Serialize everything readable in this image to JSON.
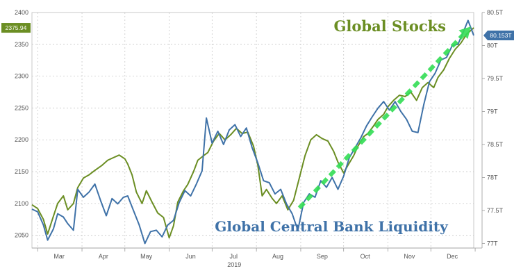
{
  "chart_data": {
    "type": "line",
    "title": "",
    "xlabel": "2019",
    "x_ticks": [
      "Mar",
      "Apr",
      "May",
      "Jun",
      "Jul",
      "Aug",
      "Sep",
      "Oct",
      "Nov",
      "Dec"
    ],
    "x_range": [
      "2019-02-25",
      "2019-12-31"
    ],
    "y_left": {
      "range": [
        2030,
        2400
      ],
      "ticks": [
        2050,
        2100,
        2150,
        2200,
        2250,
        2300,
        2350,
        2400
      ],
      "labels": [
        "2050",
        "2100",
        "2150",
        "2200",
        "2250",
        "2300",
        "2350",
        "2400"
      ]
    },
    "y_right": {
      "range": [
        76.93,
        80.5
      ],
      "ticks": [
        77,
        77.5,
        78,
        78.5,
        79,
        79.5,
        80,
        80.5
      ],
      "labels": [
        "77T",
        "77.5T",
        "78T",
        "78.5T",
        "79T",
        "79.5T",
        "80T",
        "80.5T"
      ]
    },
    "grid": true,
    "series": [
      {
        "name": "Global Stocks",
        "axis": "left",
        "color": "#6b8e23",
        "last_value_label": "2375.94",
        "points": [
          [
            "2019-02-25",
            2098
          ],
          [
            "2019-03-01",
            2092
          ],
          [
            "2019-03-05",
            2075
          ],
          [
            "2019-03-08",
            2052
          ],
          [
            "2019-03-12",
            2080
          ],
          [
            "2019-03-15",
            2100
          ],
          [
            "2019-03-19",
            2112
          ],
          [
            "2019-03-22",
            2090
          ],
          [
            "2019-03-26",
            2100
          ],
          [
            "2019-03-29",
            2125
          ],
          [
            "2019-04-02",
            2140
          ],
          [
            "2019-04-06",
            2145
          ],
          [
            "2019-04-10",
            2152
          ],
          [
            "2019-04-15",
            2160
          ],
          [
            "2019-04-19",
            2168
          ],
          [
            "2019-04-23",
            2172
          ],
          [
            "2019-04-27",
            2176
          ],
          [
            "2019-05-01",
            2170
          ],
          [
            "2019-05-03",
            2162
          ],
          [
            "2019-05-06",
            2145
          ],
          [
            "2019-05-09",
            2118
          ],
          [
            "2019-05-13",
            2100
          ],
          [
            "2019-05-16",
            2120
          ],
          [
            "2019-05-20",
            2102
          ],
          [
            "2019-05-24",
            2085
          ],
          [
            "2019-05-28",
            2078
          ],
          [
            "2019-06-01",
            2046
          ],
          [
            "2019-06-04",
            2065
          ],
          [
            "2019-06-07",
            2102
          ],
          [
            "2019-06-11",
            2120
          ],
          [
            "2019-06-14",
            2130
          ],
          [
            "2019-06-18",
            2150
          ],
          [
            "2019-06-21",
            2168
          ],
          [
            "2019-06-25",
            2175
          ],
          [
            "2019-06-28",
            2180
          ],
          [
            "2019-07-02",
            2198
          ],
          [
            "2019-07-06",
            2210
          ],
          [
            "2019-07-10",
            2200
          ],
          [
            "2019-07-14",
            2208
          ],
          [
            "2019-07-18",
            2218
          ],
          [
            "2019-07-22",
            2210
          ],
          [
            "2019-07-26",
            2212
          ],
          [
            "2019-07-30",
            2190
          ],
          [
            "2019-08-02",
            2160
          ],
          [
            "2019-08-05",
            2112
          ],
          [
            "2019-08-08",
            2122
          ],
          [
            "2019-08-12",
            2108
          ],
          [
            "2019-08-15",
            2100
          ],
          [
            "2019-08-19",
            2112
          ],
          [
            "2019-08-23",
            2090
          ],
          [
            "2019-08-27",
            2105
          ],
          [
            "2019-08-31",
            2140
          ],
          [
            "2019-09-04",
            2175
          ],
          [
            "2019-09-08",
            2200
          ],
          [
            "2019-09-12",
            2208
          ],
          [
            "2019-09-16",
            2202
          ],
          [
            "2019-09-20",
            2198
          ],
          [
            "2019-09-24",
            2182
          ],
          [
            "2019-09-27",
            2165
          ],
          [
            "2019-10-01",
            2148
          ],
          [
            "2019-10-04",
            2160
          ],
          [
            "2019-10-08",
            2175
          ],
          [
            "2019-10-11",
            2190
          ],
          [
            "2019-10-15",
            2205
          ],
          [
            "2019-10-18",
            2210
          ],
          [
            "2019-10-22",
            2222
          ],
          [
            "2019-10-25",
            2232
          ],
          [
            "2019-10-29",
            2240
          ],
          [
            "2019-11-01",
            2252
          ],
          [
            "2019-11-05",
            2262
          ],
          [
            "2019-11-09",
            2270
          ],
          [
            "2019-11-13",
            2268
          ],
          [
            "2019-11-17",
            2275
          ],
          [
            "2019-11-21",
            2262
          ],
          [
            "2019-11-25",
            2282
          ],
          [
            "2019-11-29",
            2290
          ],
          [
            "2019-12-03",
            2282
          ],
          [
            "2019-12-06",
            2298
          ],
          [
            "2019-12-10",
            2310
          ],
          [
            "2019-12-14",
            2328
          ],
          [
            "2019-12-18",
            2342
          ],
          [
            "2019-12-22",
            2352
          ],
          [
            "2019-12-26",
            2366
          ],
          [
            "2019-12-29",
            2372
          ],
          [
            "2019-12-31",
            2375.94
          ]
        ]
      },
      {
        "name": "Global Central Bank Liquidity",
        "axis": "right",
        "color": "#3f72a8",
        "last_value_label": "80.153T",
        "points": [
          [
            "2019-02-25",
            77.52
          ],
          [
            "2019-03-01",
            77.48
          ],
          [
            "2019-03-05",
            77.28
          ],
          [
            "2019-03-08",
            77.05
          ],
          [
            "2019-03-12",
            77.22
          ],
          [
            "2019-03-15",
            77.45
          ],
          [
            "2019-03-19",
            77.4
          ],
          [
            "2019-03-22",
            77.3
          ],
          [
            "2019-03-26",
            77.2
          ],
          [
            "2019-03-29",
            77.82
          ],
          [
            "2019-04-02",
            77.7
          ],
          [
            "2019-04-06",
            77.78
          ],
          [
            "2019-04-10",
            77.9
          ],
          [
            "2019-04-14",
            77.65
          ],
          [
            "2019-04-18",
            77.42
          ],
          [
            "2019-04-22",
            77.68
          ],
          [
            "2019-04-26",
            77.6
          ],
          [
            "2019-04-30",
            77.7
          ],
          [
            "2019-05-03",
            77.72
          ],
          [
            "2019-05-07",
            77.5
          ],
          [
            "2019-05-11",
            77.28
          ],
          [
            "2019-05-15",
            77.0
          ],
          [
            "2019-05-19",
            77.18
          ],
          [
            "2019-05-23",
            77.2
          ],
          [
            "2019-05-27",
            77.1
          ],
          [
            "2019-05-31",
            77.28
          ],
          [
            "2019-06-04",
            77.35
          ],
          [
            "2019-06-08",
            77.62
          ],
          [
            "2019-06-12",
            77.8
          ],
          [
            "2019-06-16",
            77.72
          ],
          [
            "2019-06-20",
            77.9
          ],
          [
            "2019-06-24",
            78.1
          ],
          [
            "2019-06-27",
            78.9
          ],
          [
            "2019-07-01",
            78.52
          ],
          [
            "2019-07-05",
            78.7
          ],
          [
            "2019-07-09",
            78.5
          ],
          [
            "2019-07-13",
            78.72
          ],
          [
            "2019-07-17",
            78.8
          ],
          [
            "2019-07-21",
            78.62
          ],
          [
            "2019-07-25",
            78.75
          ],
          [
            "2019-07-29",
            78.45
          ],
          [
            "2019-08-02",
            78.22
          ],
          [
            "2019-08-06",
            77.95
          ],
          [
            "2019-08-10",
            77.92
          ],
          [
            "2019-08-14",
            77.75
          ],
          [
            "2019-08-18",
            77.82
          ],
          [
            "2019-08-22",
            77.6
          ],
          [
            "2019-08-26",
            77.45
          ],
          [
            "2019-08-30",
            77.2
          ],
          [
            "2019-09-03",
            77.62
          ],
          [
            "2019-09-07",
            77.75
          ],
          [
            "2019-09-11",
            77.7
          ],
          [
            "2019-09-15",
            77.95
          ],
          [
            "2019-09-19",
            77.85
          ],
          [
            "2019-09-23",
            78.0
          ],
          [
            "2019-09-27",
            77.82
          ],
          [
            "2019-10-01",
            78.02
          ],
          [
            "2019-10-05",
            78.3
          ],
          [
            "2019-10-09",
            78.45
          ],
          [
            "2019-10-13",
            78.6
          ],
          [
            "2019-10-17",
            78.78
          ],
          [
            "2019-10-21",
            78.92
          ],
          [
            "2019-10-25",
            79.05
          ],
          [
            "2019-10-29",
            79.15
          ],
          [
            "2019-11-02",
            79.02
          ],
          [
            "2019-11-06",
            79.15
          ],
          [
            "2019-11-10",
            79.0
          ],
          [
            "2019-11-14",
            78.88
          ],
          [
            "2019-11-18",
            78.7
          ],
          [
            "2019-11-22",
            78.68
          ],
          [
            "2019-11-26",
            79.1
          ],
          [
            "2019-11-30",
            79.45
          ],
          [
            "2019-12-04",
            79.58
          ],
          [
            "2019-12-08",
            79.78
          ],
          [
            "2019-12-12",
            79.82
          ],
          [
            "2019-12-16",
            80.0
          ],
          [
            "2019-12-20",
            80.02
          ],
          [
            "2019-12-24",
            80.22
          ],
          [
            "2019-12-27",
            80.38
          ],
          [
            "2019-12-31",
            80.153
          ]
        ]
      }
    ],
    "annotations": [
      {
        "text": "Global Stocks",
        "color": "#6b8e23",
        "location": "top-right"
      },
      {
        "text": "Global Central Bank Liquidity",
        "color": "#3f72a8",
        "location": "bottom-center"
      }
    ],
    "trend_arrow": {
      "color": "#33dd55",
      "from": [
        "2019-08-31",
        2093
      ],
      "to": [
        "2019-12-29",
        2378
      ]
    }
  }
}
